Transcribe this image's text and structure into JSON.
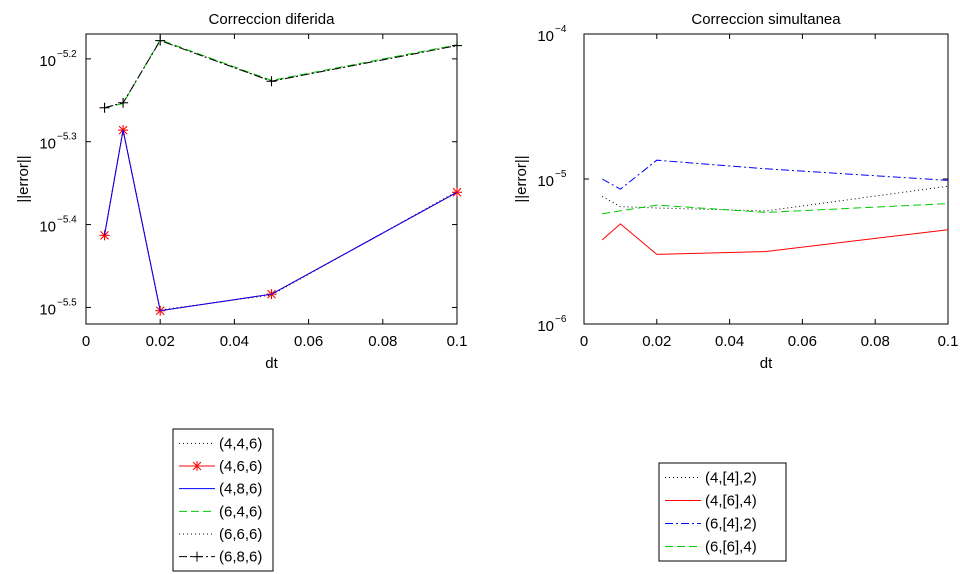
{
  "chart_data": [
    {
      "type": "line",
      "title": "Correccion diferida",
      "xlabel": "dt",
      "ylabel": "||error||",
      "xlim": [
        0,
        0.1
      ],
      "yscale": "log",
      "ylim_log10": [
        -5.52,
        -5.17
      ],
      "xticks": [
        {
          "value": 0,
          "label": "0"
        },
        {
          "value": 0.02,
          "label": "0.02"
        },
        {
          "value": 0.04,
          "label": "0.04"
        },
        {
          "value": 0.06,
          "label": "0.06"
        },
        {
          "value": 0.08,
          "label": "0.08"
        },
        {
          "value": 0.1,
          "label": "0.1"
        }
      ],
      "yticks": [
        {
          "log10": -5.2,
          "base": "10",
          "exp": "−5.2"
        },
        {
          "log10": -5.3,
          "base": "10",
          "exp": "−5.3"
        },
        {
          "log10": -5.4,
          "base": "10",
          "exp": "−5.4"
        },
        {
          "log10": -5.5,
          "base": "10",
          "exp": "−5.5"
        }
      ],
      "grid": false,
      "legend_position": "below",
      "series": [
        {
          "name": "(4,4,6)",
          "color": "#000000",
          "style": "dotted",
          "marker": "none",
          "x": [
            0.005,
            0.01,
            0.02,
            0.05,
            0.1
          ],
          "log10_y": [
            -5.412,
            -5.285,
            -5.503,
            -5.485,
            -5.36
          ]
        },
        {
          "name": "(4,6,6)",
          "color": "#ff0000",
          "style": "solid",
          "marker": "star",
          "x": [
            0.005,
            0.01,
            0.02,
            0.05,
            0.1
          ],
          "log10_y": [
            -5.413,
            -5.286,
            -5.504,
            -5.484,
            -5.361
          ]
        },
        {
          "name": "(4,8,6)",
          "color": "#0000ff",
          "style": "solid",
          "marker": "none",
          "x": [
            0.005,
            0.01,
            0.02,
            0.05,
            0.1
          ],
          "log10_y": [
            -5.413,
            -5.286,
            -5.504,
            -5.484,
            -5.361
          ]
        },
        {
          "name": "(6,4,6)",
          "color": "#00cc00",
          "style": "dashed",
          "marker": "none",
          "x": [
            0.005,
            0.01,
            0.02,
            0.05,
            0.1
          ],
          "log10_y": [
            -5.259,
            -5.254,
            -5.177,
            -5.226,
            -5.183
          ]
        },
        {
          "name": "(6,6,6)",
          "color": "#000000",
          "style": "dotted",
          "marker": "none",
          "x": [
            0.005,
            0.01,
            0.02,
            0.05,
            0.1
          ],
          "log10_y": [
            -5.259,
            -5.253,
            -5.178,
            -5.227,
            -5.184
          ]
        },
        {
          "name": "(6,8,6)",
          "color": "#000000",
          "style": "dashdot",
          "marker": "plus",
          "x": [
            0.005,
            0.01,
            0.02,
            0.05,
            0.1
          ],
          "log10_y": [
            -5.259,
            -5.253,
            -5.178,
            -5.227,
            -5.184
          ]
        }
      ]
    },
    {
      "type": "line",
      "title": "Correccion simultanea",
      "xlabel": "dt",
      "ylabel": "||error||",
      "xlim": [
        0,
        0.1
      ],
      "yscale": "log",
      "ylim_log10": [
        -6,
        -4
      ],
      "xticks": [
        {
          "value": 0,
          "label": "0"
        },
        {
          "value": 0.02,
          "label": "0.02"
        },
        {
          "value": 0.04,
          "label": "0.04"
        },
        {
          "value": 0.06,
          "label": "0.06"
        },
        {
          "value": 0.08,
          "label": "0.08"
        },
        {
          "value": 0.1,
          "label": "0.1"
        }
      ],
      "yticks": [
        {
          "log10": -4,
          "base": "10",
          "exp": "−4"
        },
        {
          "log10": -5,
          "base": "10",
          "exp": "−5"
        },
        {
          "log10": -6,
          "base": "10",
          "exp": "−6"
        }
      ],
      "grid": false,
      "legend_position": "below",
      "series": [
        {
          "name": "(4,[4],2)",
          "color": "#000000",
          "style": "dotted",
          "marker": "none",
          "x": [
            0.005,
            0.01,
            0.02,
            0.05,
            0.1
          ],
          "log10_y": [
            -5.12,
            -5.19,
            -5.2,
            -5.22,
            -5.05
          ]
        },
        {
          "name": "(4,[6],4)",
          "color": "#ff0000",
          "style": "solid",
          "marker": "none",
          "x": [
            0.005,
            0.01,
            0.02,
            0.05,
            0.1
          ],
          "log10_y": [
            -5.42,
            -5.31,
            -5.52,
            -5.5,
            -5.35
          ]
        },
        {
          "name": "(6,[4],2)",
          "color": "#0000ff",
          "style": "dashdot",
          "marker": "none",
          "x": [
            0.005,
            0.01,
            0.02,
            0.05,
            0.1
          ],
          "log10_y": [
            -5.0,
            -5.07,
            -4.87,
            -4.93,
            -5.01
          ]
        },
        {
          "name": "(6,[6],4)",
          "color": "#00cc00",
          "style": "dashed",
          "marker": "none",
          "x": [
            0.005,
            0.01,
            0.02,
            0.05,
            0.1
          ],
          "log10_y": [
            -5.24,
            -5.22,
            -5.18,
            -5.23,
            -5.17
          ]
        }
      ]
    }
  ]
}
